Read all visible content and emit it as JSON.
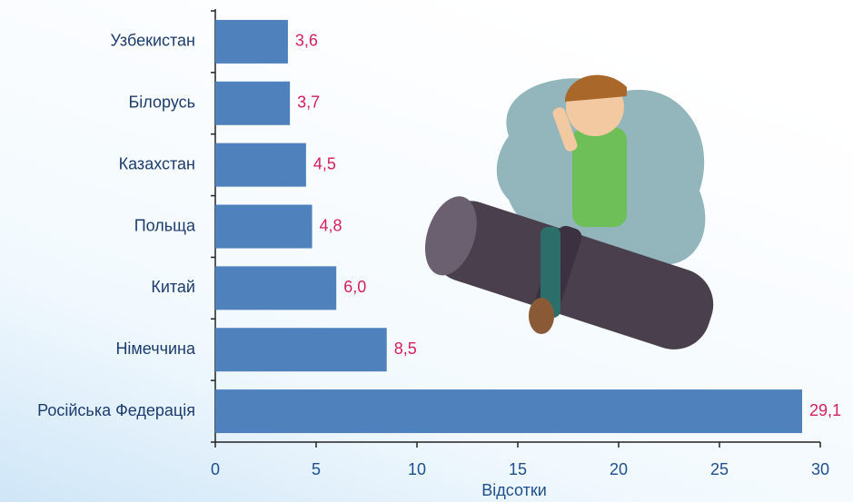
{
  "chart_data": {
    "type": "bar",
    "orientation": "horizontal",
    "categories": [
      "Узбекистан",
      "Білорусь",
      "Казахстан",
      "Польща",
      "Китай",
      "Німеччина",
      "Російська Федерація"
    ],
    "values": [
      3.6,
      3.7,
      4.5,
      4.8,
      6.0,
      8.5,
      29.1
    ],
    "value_labels": [
      "3,6",
      "3,7",
      "4,5",
      "4,8",
      "6,0",
      "8,5",
      "29,1"
    ],
    "color": "#4f81bd",
    "x_label": "Відсотки",
    "xlim": [
      0,
      30
    ],
    "xticks": [
      0,
      5,
      10,
      15,
      20,
      25,
      30
    ],
    "grid": false
  }
}
